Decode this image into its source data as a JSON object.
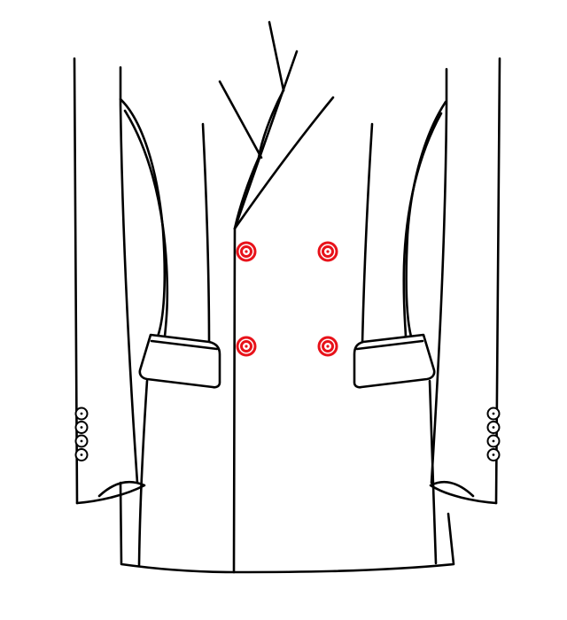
{
  "illustration": {
    "subject": "jacket-front",
    "line_color": "#000000",
    "background_color": "#ffffff",
    "highlight_color": "#e8121a",
    "front_buttons": {
      "rows": 2,
      "columns": 2,
      "highlighted": true
    },
    "cuff_buttons": {
      "per_sleeve": 4,
      "sleeves": 2
    }
  }
}
